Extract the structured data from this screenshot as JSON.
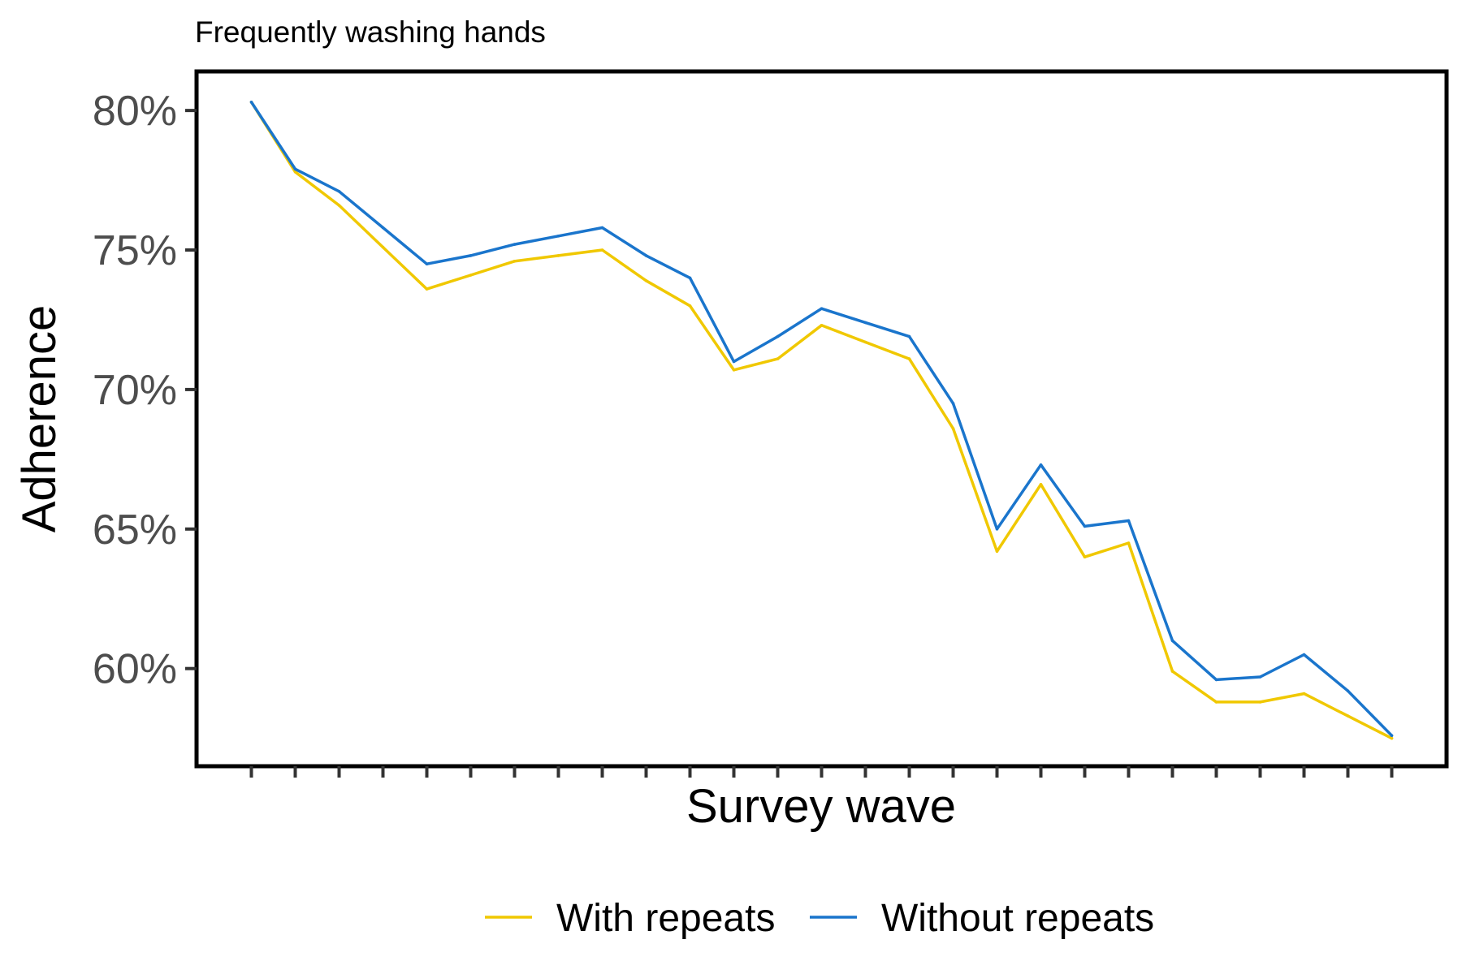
{
  "chart_data": {
    "type": "line",
    "title": "Frequently washing hands",
    "xlabel": "Survey wave",
    "ylabel": "Adherence",
    "x": [
      1,
      2,
      3,
      4,
      5,
      6,
      7,
      8,
      9,
      10,
      11,
      12,
      13,
      14,
      15,
      16,
      17,
      18,
      19,
      20,
      21,
      22,
      23,
      24,
      25,
      26,
      27
    ],
    "xlim": [
      -0.25,
      28.25
    ],
    "ylim": [
      56.5,
      81.4
    ],
    "yticks": [
      60,
      65,
      70,
      75,
      80
    ],
    "ytick_labels": [
      "60%",
      "65%",
      "70%",
      "75%",
      "80%"
    ],
    "grid": false,
    "legend_position": "bottom",
    "series": [
      {
        "name": "With repeats",
        "color": "#f0c800",
        "values": [
          80.3,
          77.8,
          76.6,
          75.1,
          73.6,
          74.1,
          74.6,
          74.8,
          75.0,
          73.9,
          73.0,
          70.7,
          71.1,
          72.3,
          71.7,
          71.1,
          68.6,
          64.2,
          66.6,
          64.0,
          64.5,
          59.9,
          58.8,
          58.8,
          59.1,
          58.3,
          57.5
        ]
      },
      {
        "name": "Without repeats",
        "color": "#1a75cc",
        "values": [
          80.3,
          77.9,
          77.1,
          75.8,
          74.5,
          74.8,
          75.2,
          75.5,
          75.8,
          74.8,
          74.0,
          71.0,
          71.9,
          72.9,
          72.4,
          71.9,
          69.5,
          65.0,
          67.3,
          65.1,
          65.3,
          61.0,
          59.6,
          59.7,
          60.5,
          59.2,
          57.6
        ]
      }
    ]
  }
}
